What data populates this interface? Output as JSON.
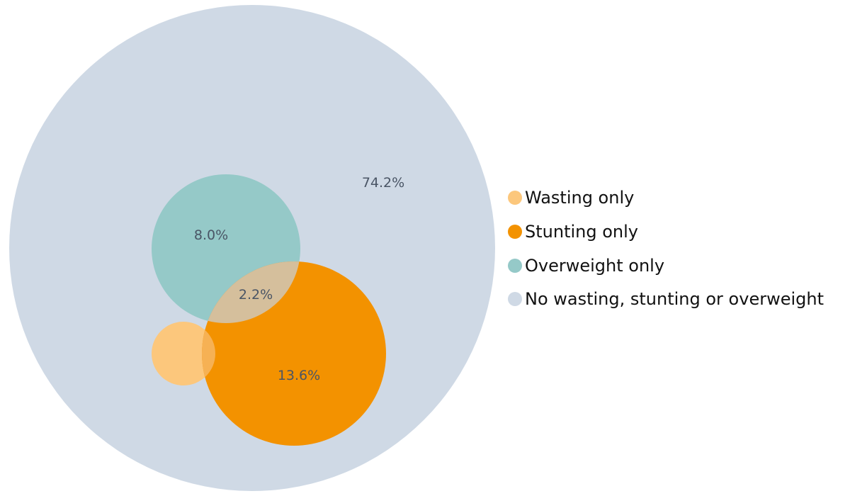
{
  "chart_data": {
    "type": "venn",
    "title": "",
    "legend_position": "right",
    "sets": [
      {
        "key": "none",
        "name": "No wasting, stunting or overweight",
        "color": "#cfd9e5"
      },
      {
        "key": "wasting",
        "name": "Wasting only",
        "color": "#fcc77c"
      },
      {
        "key": "stunting",
        "name": "Stunting only",
        "color": "#f39200"
      },
      {
        "key": "overweight",
        "name": "Overweight only",
        "color": "#95c9c8"
      }
    ],
    "overlap_colors": {
      "overweight_stunting": "#d5bf9c",
      "wasting_stunting": "#f6b154"
    },
    "labels": {
      "none": "74.2%",
      "overweight": "8.0%",
      "stunting": "13.6%",
      "overweight_stunting": "2.2%"
    },
    "values": {
      "none": 74.2,
      "overweight": 8.0,
      "stunting": 13.6,
      "overweight_stunting": 2.2
    }
  }
}
